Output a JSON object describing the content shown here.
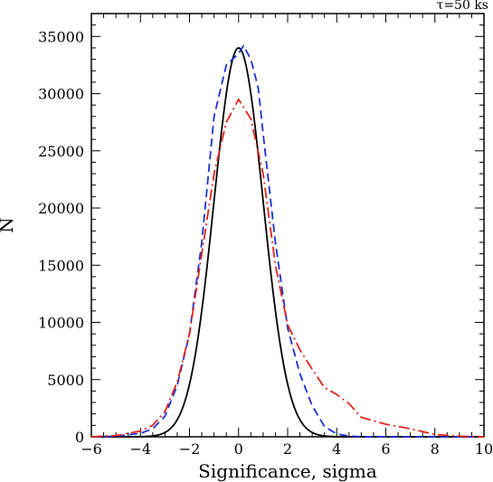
{
  "chart_data": {
    "type": "line",
    "xlabel": "Significance, sigma",
    "ylabel": "N",
    "annotation": "τ=50 ks",
    "xlim": [
      -6,
      10
    ],
    "ylim": [
      0,
      37000
    ],
    "xticks": [
      -6,
      -4,
      -2,
      0,
      2,
      4,
      6,
      8,
      10
    ],
    "xtick_labels": [
      "−6",
      "−4",
      "−2",
      "0",
      "2",
      "4",
      "6",
      "8",
      "10"
    ],
    "yticks": [
      0,
      5000,
      10000,
      15000,
      20000,
      25000,
      30000,
      35000
    ],
    "ytick_labels": [
      "0",
      "5000",
      "10000",
      "15000",
      "20000",
      "25000",
      "30000",
      "35000"
    ],
    "grid": false,
    "series": [
      {
        "style": "solid",
        "color": "#000000",
        "gaussian": {
          "amplitude": 34000,
          "mean": 0,
          "sigma": 1.0
        }
      },
      {
        "style": "dashed",
        "color": "#1f2fd6",
        "x": [
          -6,
          -5,
          -4,
          -3.5,
          -3,
          -2.5,
          -2,
          -1.5,
          -1,
          -0.5,
          0,
          0.2,
          0.5,
          0.8,
          1,
          1.5,
          2,
          2.5,
          3,
          3.5,
          4,
          4.5,
          5,
          6,
          8,
          10
        ],
        "y": [
          0,
          50,
          300,
          700,
          1800,
          4500,
          9000,
          17000,
          28000,
          32500,
          33500,
          34200,
          33000,
          30500,
          26500,
          17000,
          9500,
          5500,
          2700,
          900,
          250,
          60,
          10,
          0,
          0,
          0
        ]
      },
      {
        "style": "dashdot",
        "color": "#e0251b",
        "x": [
          -6,
          -5,
          -4,
          -3.5,
          -3,
          -2.5,
          -2,
          -1.5,
          -1,
          -0.5,
          0,
          0.5,
          1,
          1.5,
          2,
          2.5,
          3,
          3.5,
          4,
          4.5,
          5,
          5.5,
          6,
          7,
          8,
          9,
          10
        ],
        "y": [
          0,
          100,
          500,
          1000,
          2200,
          4800,
          9000,
          16000,
          23000,
          27500,
          29500,
          27800,
          23000,
          15000,
          9800,
          7600,
          5900,
          4300,
          3700,
          2900,
          1700,
          1400,
          1100,
          700,
          200,
          50,
          0
        ]
      }
    ]
  }
}
